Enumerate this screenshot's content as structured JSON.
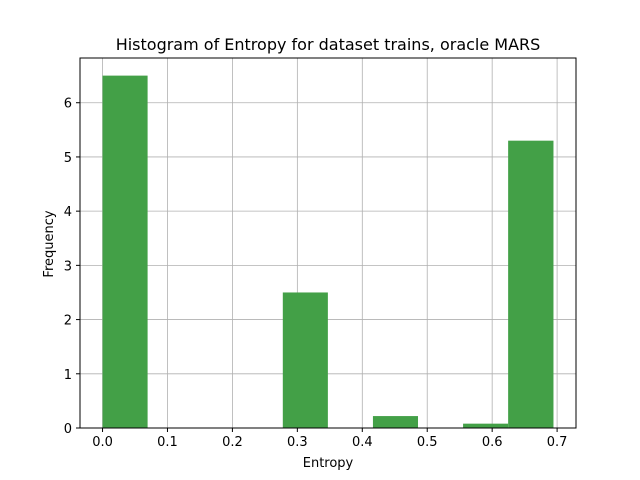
{
  "chart_data": {
    "type": "bar",
    "title": "Histogram of Entropy for dataset trains, oracle MARS",
    "xlabel": "Entropy",
    "ylabel": "Frequency",
    "xlim": [
      -0.0347,
      0.7291
    ],
    "ylim": [
      0,
      6.825
    ],
    "xticks": [
      0.0,
      0.1,
      0.2,
      0.3,
      0.4,
      0.5,
      0.6,
      0.7
    ],
    "xtick_labels": [
      "0.0",
      "0.1",
      "0.2",
      "0.3",
      "0.4",
      "0.5",
      "0.6",
      "0.7"
    ],
    "yticks": [
      0,
      1,
      2,
      3,
      4,
      5,
      6
    ],
    "ytick_labels": [
      "0",
      "1",
      "2",
      "3",
      "4",
      "5",
      "6"
    ],
    "grid": true,
    "bar_color": "#43a047",
    "bins": [
      {
        "x0": 0.0,
        "x1": 0.0694,
        "value": 6.5
      },
      {
        "x0": 0.0694,
        "x1": 0.1388,
        "value": 0
      },
      {
        "x0": 0.1388,
        "x1": 0.2082,
        "value": 0
      },
      {
        "x0": 0.2082,
        "x1": 0.2776,
        "value": 0
      },
      {
        "x0": 0.2776,
        "x1": 0.347,
        "value": 2.5
      },
      {
        "x0": 0.347,
        "x1": 0.4164,
        "value": 0
      },
      {
        "x0": 0.4164,
        "x1": 0.4858,
        "value": 0.22
      },
      {
        "x0": 0.4858,
        "x1": 0.5552,
        "value": 0
      },
      {
        "x0": 0.5552,
        "x1": 0.6246,
        "value": 0.08
      },
      {
        "x0": 0.6246,
        "x1": 0.6944,
        "value": 5.3
      }
    ]
  }
}
